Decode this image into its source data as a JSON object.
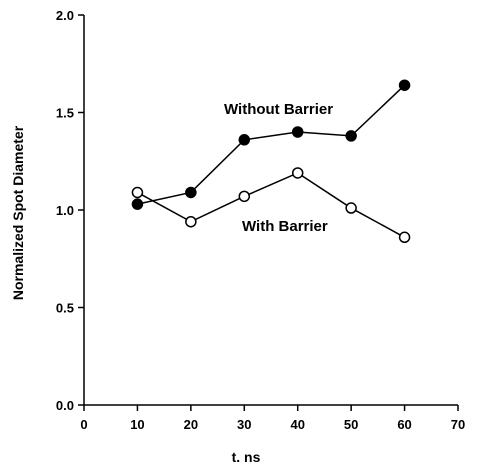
{
  "chart_data": {
    "type": "line",
    "title": "",
    "xlabel": "t. ns",
    "ylabel": "Normalized Spot Diameter",
    "xlim": [
      0,
      70
    ],
    "ylim": [
      0.0,
      2.0
    ],
    "x_ticks": [
      "0",
      "10",
      "20",
      "30",
      "40",
      "50",
      "60",
      "70"
    ],
    "y_ticks": [
      "0.0",
      "0.5",
      "1.0",
      "1.5",
      "2.0"
    ],
    "grid": false,
    "legend": "none",
    "series": [
      {
        "name": "Without Barrier",
        "marker": "filled-circle",
        "color": "#000000",
        "x": [
          10,
          20,
          30,
          40,
          50,
          60
        ],
        "y": [
          1.03,
          1.09,
          1.36,
          1.4,
          1.38,
          1.64
        ]
      },
      {
        "name": "With Barrier",
        "marker": "open-circle",
        "color": "#000000",
        "x": [
          10,
          20,
          30,
          40,
          50,
          60
        ],
        "y": [
          1.09,
          0.94,
          1.07,
          1.19,
          1.01,
          0.86
        ]
      }
    ]
  }
}
